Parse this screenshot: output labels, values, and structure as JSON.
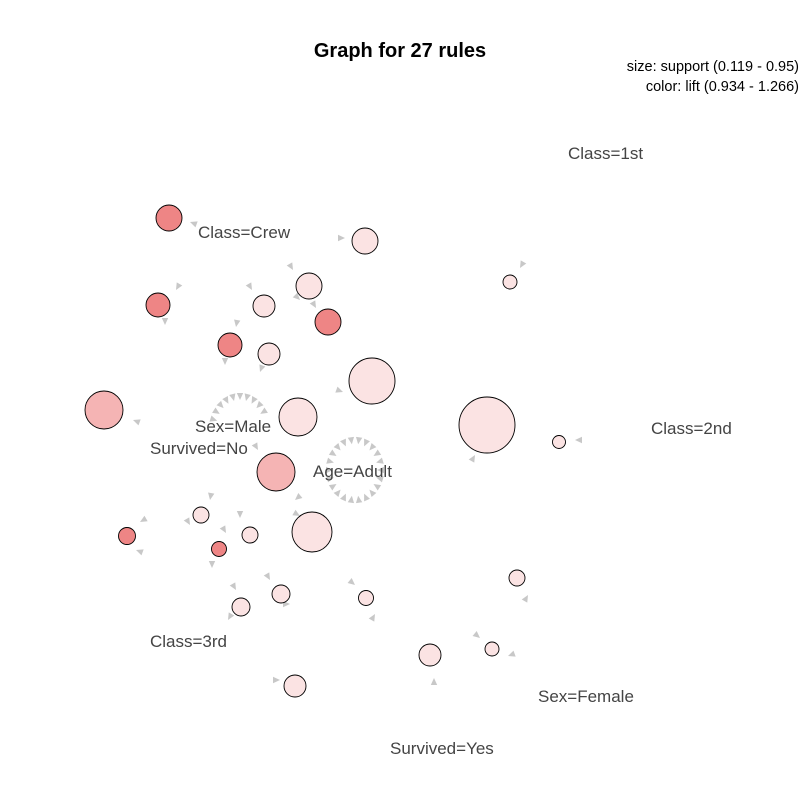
{
  "title": "Graph for 27 rules",
  "legend": {
    "size": "size: support (0.119 - 0.95)",
    "color": "color: lift (0.934 - 1.266)"
  },
  "items": [
    "Class=1st",
    "Class=Crew",
    "Class=2nd",
    "Sex=Male",
    "Survived=No",
    "Age=Adult",
    "Class=3rd",
    "Sex=Female",
    "Survived=Yes"
  ],
  "colors": {
    "lift_high": "#ee8585",
    "lift_mid": "#f5b4b4",
    "lift_low": "#fbe3e3",
    "arrow": "#c8c8c8"
  }
}
